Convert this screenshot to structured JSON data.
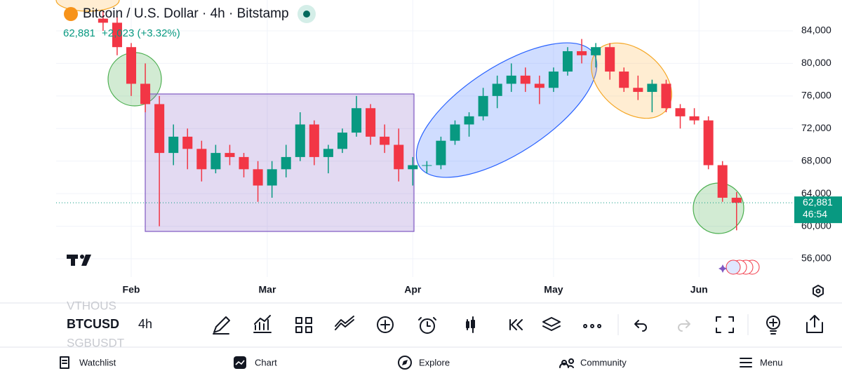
{
  "header": {
    "symbol_title": "Bitcoin / U.S. Dollar · 4h · Bitstamp",
    "price": "62,881",
    "change": "+2,023 (+3.32%)"
  },
  "chart_data": {
    "type": "candlestick",
    "x": [
      26,
      29,
      32,
      35,
      38,
      41,
      44,
      47,
      50,
      53,
      56,
      59,
      62,
      65,
      68,
      71,
      74,
      77,
      80,
      83,
      86,
      89,
      92,
      95,
      98,
      101,
      104,
      107,
      110,
      113,
      116,
      119,
      122,
      125,
      128,
      131,
      134,
      137,
      140,
      143,
      146,
      149,
      152,
      155,
      158,
      161
    ],
    "open": [
      85500,
      85000,
      82000,
      77500,
      75000,
      69000,
      71000,
      69500,
      67000,
      69000,
      68500,
      67000,
      65000,
      67000,
      68500,
      72500,
      68500,
      69500,
      71500,
      74500,
      71000,
      70000,
      67000,
      67500,
      67500,
      70500,
      72500,
      73500,
      76000,
      77500,
      78500,
      77500,
      77000,
      79000,
      81500,
      81000,
      82000,
      79000,
      77000,
      76500,
      77500,
      74500,
      73500,
      73000,
      67500,
      63500
    ],
    "high": [
      86500,
      85800,
      82500,
      80000,
      76000,
      72500,
      72000,
      70500,
      70000,
      70000,
      69000,
      68000,
      68000,
      70000,
      74000,
      73000,
      70000,
      72000,
      76000,
      75000,
      72500,
      72000,
      68500,
      68000,
      71000,
      73000,
      74000,
      77000,
      78500,
      80000,
      79500,
      78500,
      79500,
      82000,
      83000,
      82500,
      82500,
      79500,
      78500,
      78000,
      78000,
      75000,
      74500,
      73500,
      68000,
      64200
    ],
    "low": [
      84000,
      81000,
      76000,
      74000,
      60000,
      67500,
      67000,
      65500,
      66500,
      67500,
      66000,
      63000,
      63500,
      66000,
      68000,
      67500,
      66500,
      69000,
      71000,
      70000,
      69000,
      65500,
      65000,
      66500,
      67000,
      70000,
      71000,
      73000,
      74500,
      76500,
      76500,
      75000,
      76500,
      78500,
      80000,
      79500,
      78000,
      76500,
      75500,
      74000,
      74000,
      72000,
      72500,
      67000,
      63000,
      59500
    ],
    "close": [
      85000,
      82000,
      77500,
      75000,
      69000,
      71000,
      69500,
      67000,
      69000,
      68500,
      67000,
      65000,
      67000,
      68500,
      72500,
      68500,
      69500,
      71500,
      74500,
      71000,
      70000,
      67000,
      67500,
      67500,
      70500,
      72500,
      73500,
      76000,
      77500,
      78500,
      77500,
      77000,
      79000,
      81500,
      81000,
      82000,
      79000,
      77000,
      76500,
      77500,
      74500,
      73500,
      73000,
      67500,
      63500,
      62881
    ],
    "up_color": "#089981",
    "down_color": "#f23645",
    "grid": true,
    "xlim": [
      16,
      173
    ],
    "xticks": [
      {
        "value": 32,
        "label": "Feb"
      },
      {
        "value": 61,
        "label": "Mar"
      },
      {
        "value": 92,
        "label": "Apr"
      },
      {
        "value": 122,
        "label": "May"
      },
      {
        "value": 153,
        "label": "Jun"
      }
    ],
    "ylim": [
      53760,
      87790
    ],
    "yticks": [
      {
        "value": 56000,
        "label": "56,000"
      },
      {
        "value": 60000,
        "label": "60,000"
      },
      {
        "value": 64000,
        "label": "64,000"
      },
      {
        "value": 68000,
        "label": "68,000"
      },
      {
        "value": 72000,
        "label": "72,000"
      },
      {
        "value": 76000,
        "label": "76,000"
      },
      {
        "value": 80000,
        "label": "80,000"
      },
      {
        "value": 84000,
        "label": "84,000"
      }
    ],
    "last_price": {
      "value": 62881,
      "label": "62,881"
    },
    "countdown": "46:54"
  },
  "toolbar": {
    "prev_symbol": "VTHOUS",
    "symbol": "BTCUSD",
    "interval": "4h",
    "next_symbol": "SGBUSDT"
  },
  "nav": [
    "Watchlist",
    "Chart",
    "Explore",
    "Community",
    "Menu"
  ]
}
